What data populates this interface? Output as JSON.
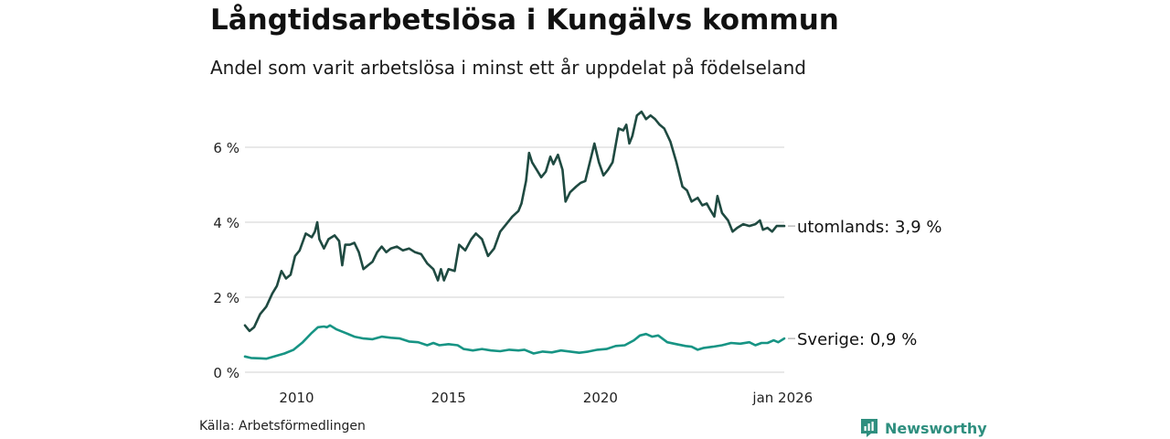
{
  "title": "Långtidsarbetslösa i Kungälvs kommun",
  "subtitle": "Andel som varit arbetslösa i minst ett år uppdelat på födelseland",
  "source": "Källa: Arbetsförmedlingen",
  "brand": "Newsworthy",
  "colors": {
    "utomlands": "#1f4a41",
    "sverige": "#179484",
    "grid": "#d9d9d9",
    "brand": "#2f8f7f"
  },
  "chart_data": {
    "type": "line",
    "title": "Långtidsarbetslösa i Kungälvs kommun",
    "xlabel": "",
    "ylabel": "",
    "xlim": [
      2008.3,
      2026.05
    ],
    "ylim": [
      0,
      7
    ],
    "y_ticks": [
      0,
      2,
      4,
      6
    ],
    "y_tick_labels": [
      "0 %",
      "2 %",
      "4 %",
      "6 %"
    ],
    "x_ticks": [
      2010,
      2015,
      2020,
      2026
    ],
    "x_tick_labels": [
      "2010",
      "2015",
      "2020",
      "jan 2026"
    ],
    "grid": true,
    "series": [
      {
        "name": "utomlands",
        "end_label": "utomlands: 3,9 %",
        "points": [
          [
            2008.3,
            1.25
          ],
          [
            2008.45,
            1.1
          ],
          [
            2008.6,
            1.2
          ],
          [
            2008.8,
            1.55
          ],
          [
            2009.0,
            1.75
          ],
          [
            2009.2,
            2.1
          ],
          [
            2009.35,
            2.3
          ],
          [
            2009.5,
            2.7
          ],
          [
            2009.65,
            2.5
          ],
          [
            2009.8,
            2.6
          ],
          [
            2009.95,
            3.1
          ],
          [
            2010.1,
            3.25
          ],
          [
            2010.3,
            3.7
          ],
          [
            2010.5,
            3.6
          ],
          [
            2010.6,
            3.75
          ],
          [
            2010.68,
            4.0
          ],
          [
            2010.75,
            3.55
          ],
          [
            2010.9,
            3.3
          ],
          [
            2011.05,
            3.55
          ],
          [
            2011.25,
            3.65
          ],
          [
            2011.4,
            3.5
          ],
          [
            2011.5,
            2.85
          ],
          [
            2011.6,
            3.4
          ],
          [
            2011.75,
            3.4
          ],
          [
            2011.9,
            3.45
          ],
          [
            2012.05,
            3.2
          ],
          [
            2012.2,
            2.75
          ],
          [
            2012.35,
            2.85
          ],
          [
            2012.5,
            2.95
          ],
          [
            2012.65,
            3.2
          ],
          [
            2012.8,
            3.35
          ],
          [
            2012.95,
            3.2
          ],
          [
            2013.1,
            3.3
          ],
          [
            2013.3,
            3.35
          ],
          [
            2013.5,
            3.25
          ],
          [
            2013.7,
            3.3
          ],
          [
            2013.9,
            3.2
          ],
          [
            2014.1,
            3.15
          ],
          [
            2014.3,
            2.9
          ],
          [
            2014.5,
            2.75
          ],
          [
            2014.65,
            2.45
          ],
          [
            2014.75,
            2.75
          ],
          [
            2014.85,
            2.45
          ],
          [
            2015.0,
            2.75
          ],
          [
            2015.2,
            2.7
          ],
          [
            2015.35,
            3.4
          ],
          [
            2015.55,
            3.25
          ],
          [
            2015.75,
            3.55
          ],
          [
            2015.9,
            3.7
          ],
          [
            2016.1,
            3.55
          ],
          [
            2016.3,
            3.1
          ],
          [
            2016.5,
            3.3
          ],
          [
            2016.7,
            3.75
          ],
          [
            2016.9,
            3.95
          ],
          [
            2017.1,
            4.15
          ],
          [
            2017.3,
            4.3
          ],
          [
            2017.4,
            4.5
          ],
          [
            2017.55,
            5.1
          ],
          [
            2017.65,
            5.85
          ],
          [
            2017.75,
            5.6
          ],
          [
            2017.9,
            5.4
          ],
          [
            2018.05,
            5.2
          ],
          [
            2018.2,
            5.35
          ],
          [
            2018.35,
            5.75
          ],
          [
            2018.45,
            5.55
          ],
          [
            2018.6,
            5.8
          ],
          [
            2018.75,
            5.4
          ],
          [
            2018.85,
            4.55
          ],
          [
            2019.0,
            4.8
          ],
          [
            2019.2,
            4.95
          ],
          [
            2019.35,
            5.05
          ],
          [
            2019.5,
            5.1
          ],
          [
            2019.65,
            5.6
          ],
          [
            2019.8,
            6.1
          ],
          [
            2019.95,
            5.6
          ],
          [
            2020.1,
            5.25
          ],
          [
            2020.25,
            5.4
          ],
          [
            2020.4,
            5.6
          ],
          [
            2020.6,
            6.5
          ],
          [
            2020.75,
            6.45
          ],
          [
            2020.85,
            6.6
          ],
          [
            2020.95,
            6.1
          ],
          [
            2021.05,
            6.3
          ],
          [
            2021.2,
            6.85
          ],
          [
            2021.35,
            6.95
          ],
          [
            2021.5,
            6.75
          ],
          [
            2021.65,
            6.85
          ],
          [
            2021.8,
            6.75
          ],
          [
            2021.95,
            6.6
          ],
          [
            2022.1,
            6.5
          ],
          [
            2022.3,
            6.15
          ],
          [
            2022.5,
            5.6
          ],
          [
            2022.7,
            4.95
          ],
          [
            2022.85,
            4.85
          ],
          [
            2023.0,
            4.55
          ],
          [
            2023.2,
            4.65
          ],
          [
            2023.35,
            4.45
          ],
          [
            2023.5,
            4.5
          ],
          [
            2023.6,
            4.35
          ],
          [
            2023.75,
            4.15
          ],
          [
            2023.85,
            4.7
          ],
          [
            2024.0,
            4.25
          ],
          [
            2024.2,
            4.05
          ],
          [
            2024.35,
            3.75
          ],
          [
            2024.5,
            3.85
          ],
          [
            2024.7,
            3.95
          ],
          [
            2024.9,
            3.9
          ],
          [
            2025.1,
            3.95
          ],
          [
            2025.25,
            4.05
          ],
          [
            2025.35,
            3.8
          ],
          [
            2025.5,
            3.85
          ],
          [
            2025.65,
            3.75
          ],
          [
            2025.8,
            3.9
          ],
          [
            2026.05,
            3.9
          ]
        ]
      },
      {
        "name": "Sverige",
        "end_label": "Sverige: 0,9 %",
        "points": [
          [
            2008.3,
            0.42
          ],
          [
            2008.5,
            0.38
          ],
          [
            2008.8,
            0.37
          ],
          [
            2009.0,
            0.36
          ],
          [
            2009.3,
            0.43
          ],
          [
            2009.6,
            0.5
          ],
          [
            2009.9,
            0.6
          ],
          [
            2010.2,
            0.8
          ],
          [
            2010.5,
            1.05
          ],
          [
            2010.7,
            1.2
          ],
          [
            2010.9,
            1.22
          ],
          [
            2011.0,
            1.2
          ],
          [
            2011.1,
            1.25
          ],
          [
            2011.3,
            1.15
          ],
          [
            2011.6,
            1.05
          ],
          [
            2011.9,
            0.95
          ],
          [
            2012.2,
            0.9
          ],
          [
            2012.5,
            0.88
          ],
          [
            2012.8,
            0.95
          ],
          [
            2013.1,
            0.92
          ],
          [
            2013.4,
            0.9
          ],
          [
            2013.7,
            0.82
          ],
          [
            2014.0,
            0.8
          ],
          [
            2014.3,
            0.72
          ],
          [
            2014.5,
            0.78
          ],
          [
            2014.7,
            0.72
          ],
          [
            2015.0,
            0.75
          ],
          [
            2015.3,
            0.72
          ],
          [
            2015.5,
            0.62
          ],
          [
            2015.8,
            0.58
          ],
          [
            2016.1,
            0.62
          ],
          [
            2016.4,
            0.58
          ],
          [
            2016.7,
            0.56
          ],
          [
            2017.0,
            0.6
          ],
          [
            2017.3,
            0.58
          ],
          [
            2017.5,
            0.6
          ],
          [
            2017.8,
            0.5
          ],
          [
            2018.1,
            0.55
          ],
          [
            2018.4,
            0.53
          ],
          [
            2018.7,
            0.58
          ],
          [
            2019.0,
            0.55
          ],
          [
            2019.3,
            0.52
          ],
          [
            2019.6,
            0.55
          ],
          [
            2019.9,
            0.6
          ],
          [
            2020.2,
            0.62
          ],
          [
            2020.5,
            0.7
          ],
          [
            2020.8,
            0.72
          ],
          [
            2021.1,
            0.85
          ],
          [
            2021.3,
            0.98
          ],
          [
            2021.5,
            1.02
          ],
          [
            2021.7,
            0.95
          ],
          [
            2021.9,
            0.98
          ],
          [
            2022.2,
            0.8
          ],
          [
            2022.5,
            0.75
          ],
          [
            2022.8,
            0.7
          ],
          [
            2023.0,
            0.68
          ],
          [
            2023.2,
            0.6
          ],
          [
            2023.4,
            0.65
          ],
          [
            2023.7,
            0.68
          ],
          [
            2024.0,
            0.72
          ],
          [
            2024.3,
            0.78
          ],
          [
            2024.6,
            0.76
          ],
          [
            2024.9,
            0.8
          ],
          [
            2025.1,
            0.72
          ],
          [
            2025.3,
            0.78
          ],
          [
            2025.5,
            0.78
          ],
          [
            2025.7,
            0.85
          ],
          [
            2025.85,
            0.8
          ],
          [
            2026.05,
            0.9
          ]
        ]
      }
    ]
  }
}
